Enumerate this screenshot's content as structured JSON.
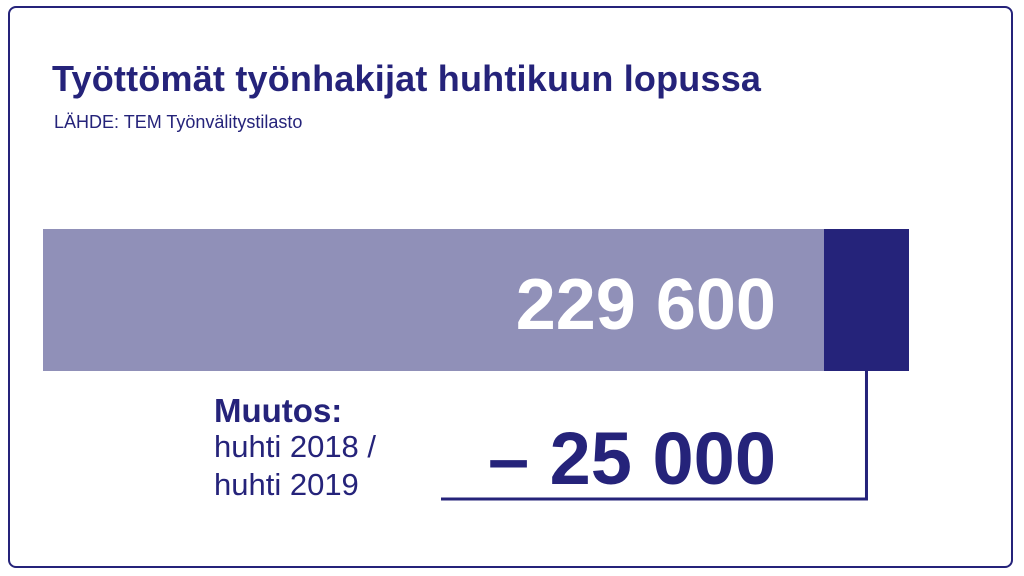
{
  "title": "Työttömät työnhakijat huhtikuun lopussa",
  "source": "LÄHDE: TEM Työnvälitystilasto",
  "colors": {
    "primary": "#25237a",
    "bar_light": "#9090b8",
    "background": "#ffffff"
  },
  "chart_data": {
    "type": "bar",
    "orientation": "horizontal",
    "title": "Työttömät työnhakijat huhtikuun lopussa",
    "total": 229600,
    "total_label": "229 600",
    "segments": [
      {
        "value": 229600,
        "color": "#9090b8"
      },
      {
        "value": 25000,
        "color": "#25237a"
      }
    ],
    "change": {
      "title": "Muutos:",
      "period_line1": "huhti 2018 /",
      "period_line2": "huhti 2019",
      "value": -25000,
      "label": "– 25 000"
    }
  }
}
